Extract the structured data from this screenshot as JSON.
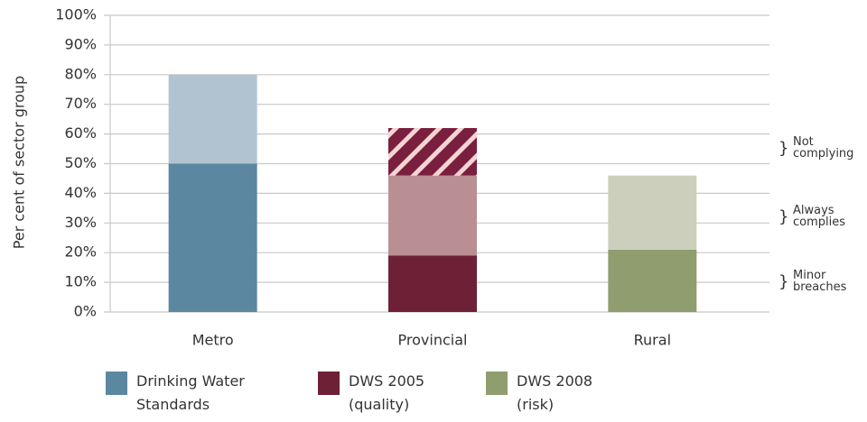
{
  "chart_data": {
    "type": "stacked_bar",
    "y_label": "Per cent of sector group",
    "categories": [
      "Metro",
      "Provincial",
      "Rural"
    ],
    "series": [
      {
        "name": "Minor breaches",
        "values": [
          50,
          19,
          21
        ],
        "colors": [
          "#5b87a0",
          "#6e2036",
          "#909d6f"
        ]
      },
      {
        "name": "Always complies",
        "values": [
          30,
          27,
          25
        ],
        "colors": [
          "#b1c3d1",
          "#b98f93",
          "#cdcfbd"
        ]
      },
      {
        "name": "Not complying",
        "values": [
          null,
          16,
          null
        ],
        "colors": [
          null,
          "hatch",
          null
        ]
      }
    ],
    "hatch_colors": [
      "#7a1f3e",
      "#f6d4d4"
    ],
    "legend": [
      {
        "name": "Drinking Water Standards",
        "color": "#5b87a0"
      },
      {
        "name": "DWS 2005 (quality)",
        "color": "#6e2036"
      },
      {
        "name": "DWS 2008 (risk)",
        "color": "#909d6f"
      }
    ],
    "ylim": [
      0,
      100
    ],
    "yticks": [
      {
        "value": 0,
        "label": "0%"
      },
      {
        "value": 10,
        "label": "10%"
      },
      {
        "value": 20,
        "label": "20%"
      },
      {
        "value": 30,
        "label": "30%"
      },
      {
        "value": 40,
        "label": "40%"
      },
      {
        "value": 50,
        "label": "50%"
      },
      {
        "value": 60,
        "label": "60%"
      },
      {
        "value": 70,
        "label": "70%"
      },
      {
        "value": 80,
        "label": "80%"
      },
      {
        "value": 90,
        "label": "90%"
      },
      {
        "value": 100,
        "label": "100%"
      }
    ],
    "grid": true
  }
}
